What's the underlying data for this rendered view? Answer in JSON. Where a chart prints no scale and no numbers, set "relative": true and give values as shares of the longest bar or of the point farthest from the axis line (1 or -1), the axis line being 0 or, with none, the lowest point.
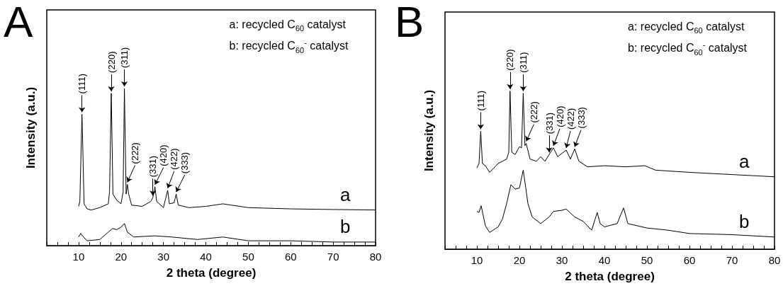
{
  "chart_data": [
    {
      "type": "line",
      "title": "A",
      "xlabel": "2 theta (degree)",
      "ylabel": "Intensity (a.u.)",
      "relative": true,
      "xlim": [
        2.5,
        80
      ],
      "xticks": [
        {
          "value": 2.5,
          "label": null
        },
        {
          "value": 5,
          "label": null
        },
        {
          "value": 7.5,
          "label": null
        },
        10,
        {
          "value": 12.5,
          "label": null
        },
        {
          "value": 15,
          "label": null
        },
        {
          "value": 17.5,
          "label": null
        },
        20,
        {
          "value": 22.5,
          "label": null
        },
        {
          "value": 25,
          "label": null
        },
        {
          "value": 27.5,
          "label": null
        },
        30,
        {
          "value": 32.5,
          "label": null
        },
        {
          "value": 35,
          "label": null
        },
        {
          "value": 37.5,
          "label": null
        },
        40,
        {
          "value": 42.5,
          "label": null
        },
        {
          "value": 45,
          "label": null
        },
        {
          "value": 47.5,
          "label": null
        },
        50,
        {
          "value": 52.5,
          "label": null
        },
        {
          "value": 55,
          "label": null
        },
        {
          "value": 57.5,
          "label": null
        },
        60,
        {
          "value": 62.5,
          "label": null
        },
        {
          "value": 65,
          "label": null
        },
        {
          "value": 67.5,
          "label": null
        },
        70,
        {
          "value": 72.5,
          "label": null
        },
        {
          "value": 75,
          "label": null
        },
        {
          "value": 77.5,
          "label": null
        },
        80
      ],
      "tick_labels": "x",
      "legend": false,
      "grid": false,
      "marker": "none",
      "annotations": [
        "a: recycled C$_{60}$ catalyst",
        "b: recycled C$_{60}$$^{-}$ catalyst",
        {
          "text": "(111)",
          "x": 10.8,
          "y": 0.836
        },
        {
          "text": "(220)",
          "x": 17.7,
          "y": 0.969
        },
        {
          "text": "(311)",
          "x": 20.8,
          "y": 1
        },
        {
          "text": "(222)",
          "x": 21.5,
          "y": 0.39
        },
        {
          "text": "(331)",
          "x": 27.5,
          "y": 0.305
        },
        {
          "text": "(420)",
          "x": 28,
          "y": 0.375
        },
        {
          "text": "(422)",
          "x": 31,
          "y": 0.352
        },
        {
          "text": "(333)",
          "x": 33,
          "y": 0.328
        }
      ],
      "series": [
        {
          "name": "a",
          "color": "#000000",
          "x": [
            10,
            10.3,
            10.8,
            11.3,
            12,
            13,
            15,
            17,
            17.3,
            17.7,
            18.1,
            19,
            20,
            20.5,
            20.8,
            21.2,
            21.5,
            21.8,
            22.5,
            25,
            27,
            27.5,
            28,
            28.4,
            30,
            31,
            31.4,
            32.5,
            33,
            33.5,
            36,
            40,
            44,
            46,
            50,
            60,
            70,
            80
          ],
          "values": [
            0.25,
            0.28,
            0.836,
            0.266,
            0.234,
            0.227,
            0.242,
            0.266,
            0.344,
            0.969,
            0.328,
            0.289,
            0.266,
            0.344,
            1,
            0.328,
            0.39,
            0.328,
            0.258,
            0.25,
            0.281,
            0.305,
            0.375,
            0.281,
            0.242,
            0.352,
            0.266,
            0.273,
            0.328,
            0.258,
            0.242,
            0.25,
            0.266,
            0.258,
            0.242,
            0.234,
            0.23,
            0.227
          ]
        },
        {
          "name": "b",
          "color": "#000000",
          "x": [
            10,
            10.5,
            11,
            12,
            15,
            17,
            18,
            19,
            20,
            20.8,
            21.5,
            23,
            28,
            32,
            38,
            44,
            50,
            60,
            70,
            80
          ],
          "values": [
            0.055,
            0.078,
            0.06,
            0.031,
            0.039,
            0.086,
            0.109,
            0.102,
            0.117,
            0.141,
            0.086,
            0.055,
            0.0625,
            0.055,
            0.039,
            0.055,
            0.031,
            0.031,
            0.023,
            0.023
          ]
        }
      ]
    },
    {
      "type": "line",
      "title": "B",
      "xlabel": "2 theta (degree)",
      "ylabel": "Intensity (a.u.)",
      "relative": true,
      "xlim": [
        2.5,
        80
      ],
      "xticks": [
        {
          "value": 2.5,
          "label": null
        },
        {
          "value": 5,
          "label": null
        },
        {
          "value": 7.5,
          "label": null
        },
        10,
        {
          "value": 12.5,
          "label": null
        },
        {
          "value": 15,
          "label": null
        },
        {
          "value": 17.5,
          "label": null
        },
        20,
        {
          "value": 22.5,
          "label": null
        },
        {
          "value": 25,
          "label": null
        },
        {
          "value": 27.5,
          "label": null
        },
        30,
        {
          "value": 32.5,
          "label": null
        },
        {
          "value": 35,
          "label": null
        },
        {
          "value": 37.5,
          "label": null
        },
        40,
        {
          "value": 42.5,
          "label": null
        },
        {
          "value": 45,
          "label": null
        },
        {
          "value": 47.5,
          "label": null
        },
        50,
        {
          "value": 52.5,
          "label": null
        },
        {
          "value": 55,
          "label": null
        },
        {
          "value": 57.5,
          "label": null
        },
        60,
        {
          "value": 62.5,
          "label": null
        },
        {
          "value": 65,
          "label": null
        },
        {
          "value": 67.5,
          "label": null
        },
        70,
        {
          "value": 72.5,
          "label": null
        },
        {
          "value": 75,
          "label": null
        },
        {
          "value": 77.5,
          "label": null
        },
        80
      ],
      "tick_labels": "x",
      "legend": false,
      "grid": false,
      "marker": "none",
      "annotations": [
        "a: recycled C$_{60}$ catalyst",
        "b: recycled C$_{60}$$^{-}$ catalyst",
        {
          "text": "(111)",
          "x": 10.9,
          "y": 0.746
        },
        {
          "text": "(220)",
          "x": 17.8,
          "y": 1
        },
        {
          "text": "(311)",
          "x": 20.9,
          "y": 0.986
        },
        {
          "text": "(222)",
          "x": 21.6,
          "y": 0.669
        },
        {
          "text": "(331)",
          "x": 27,
          "y": 0.599
        },
        {
          "text": "(420)",
          "x": 28,
          "y": 0.641
        },
        {
          "text": "(422)",
          "x": 31,
          "y": 0.627
        },
        {
          "text": "(333)",
          "x": 33,
          "y": 0.634
        }
      ],
      "series": [
        {
          "name": "a",
          "color": "#000000",
          "x": [
            10,
            10.5,
            10.9,
            11.3,
            12,
            13,
            15,
            17,
            17.5,
            17.8,
            18.2,
            19,
            20,
            20.5,
            20.9,
            21.3,
            21.6,
            22.5,
            24,
            25,
            26,
            27,
            28,
            29,
            31,
            32,
            33,
            34,
            36,
            40,
            45,
            49.5,
            52,
            60,
            70,
            80
          ],
          "values": [
            0.514,
            0.542,
            0.746,
            0.542,
            0.528,
            0.486,
            0.542,
            0.57,
            0.613,
            1,
            0.613,
            0.599,
            0.648,
            0.641,
            0.986,
            0.655,
            0.669,
            0.57,
            0.556,
            0.585,
            0.556,
            0.599,
            0.641,
            0.585,
            0.627,
            0.57,
            0.634,
            0.556,
            0.521,
            0.528,
            0.521,
            0.528,
            0.5,
            0.486,
            0.472,
            0.458
          ]
        },
        {
          "name": "b",
          "color": "#000000",
          "x": [
            10,
            10.5,
            11,
            12,
            13,
            15,
            16,
            17,
            18,
            19,
            20,
            20.9,
            21.5,
            22,
            23,
            25,
            27,
            28,
            30,
            31,
            33,
            35,
            37,
            38.3,
            39,
            40,
            43,
            44.5,
            45.5,
            50,
            55,
            60,
            70,
            80
          ],
          "values": [
            0.239,
            0.232,
            0.275,
            0.148,
            0.106,
            0.141,
            0.19,
            0.289,
            0.408,
            0.38,
            0.387,
            0.5,
            0.387,
            0.289,
            0.204,
            0.162,
            0.204,
            0.239,
            0.246,
            0.254,
            0.204,
            0.176,
            0.12,
            0.232,
            0.162,
            0.141,
            0.162,
            0.261,
            0.162,
            0.134,
            0.12,
            0.099,
            0.092,
            0.077
          ]
        }
      ]
    }
  ]
}
